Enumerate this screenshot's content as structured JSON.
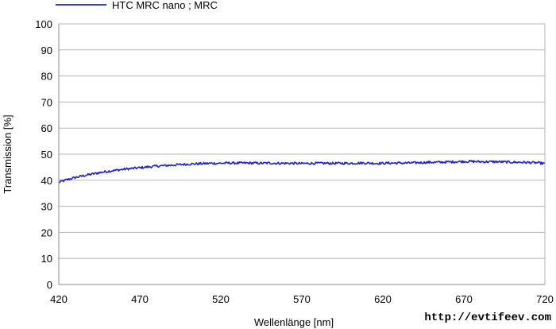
{
  "chart_data": {
    "type": "line",
    "xlabel": "Wellenlänge [nm]",
    "ylabel": "Transmission [%]",
    "xlim": [
      420,
      720
    ],
    "ylim": [
      0,
      100
    ],
    "x_ticks": [
      "420",
      "470",
      "520",
      "570",
      "620",
      "670",
      "720"
    ],
    "y_ticks": [
      "0",
      "10",
      "20",
      "30",
      "40",
      "50",
      "60",
      "70",
      "80",
      "90",
      "100"
    ],
    "grid": "horizontal",
    "legend_position": "top-left",
    "series": [
      {
        "name": "HTC MRC nano ; MRC",
        "color": "#1f1fd6",
        "x": [
          420,
          425,
          430,
          435,
          440,
          445,
          450,
          455,
          460,
          465,
          470,
          475,
          480,
          485,
          490,
          495,
          500,
          505,
          510,
          515,
          520,
          525,
          530,
          535,
          540,
          545,
          550,
          555,
          560,
          565,
          570,
          575,
          580,
          585,
          590,
          595,
          600,
          605,
          610,
          615,
          620,
          625,
          630,
          635,
          640,
          645,
          650,
          655,
          660,
          665,
          670,
          675,
          680,
          685,
          690,
          695,
          700,
          705,
          710,
          715,
          720
        ],
        "y": [
          39.2,
          40.2,
          41.0,
          41.7,
          42.3,
          42.9,
          43.4,
          43.8,
          44.2,
          44.5,
          44.8,
          45.1,
          45.4,
          45.6,
          45.8,
          46.0,
          46.2,
          46.3,
          46.4,
          46.5,
          46.5,
          46.6,
          46.6,
          46.6,
          46.6,
          46.5,
          46.6,
          46.5,
          46.5,
          46.5,
          46.4,
          46.5,
          46.5,
          46.5,
          46.5,
          46.5,
          46.5,
          46.6,
          46.6,
          46.5,
          46.5,
          46.6,
          46.6,
          46.6,
          46.7,
          46.8,
          46.9,
          46.9,
          47.0,
          47.1,
          47.2,
          47.2,
          47.1,
          47.1,
          47.1,
          47.0,
          46.9,
          46.9,
          46.8,
          46.7,
          46.4
        ]
      }
    ],
    "watermark": "http://evtifeev.com"
  }
}
